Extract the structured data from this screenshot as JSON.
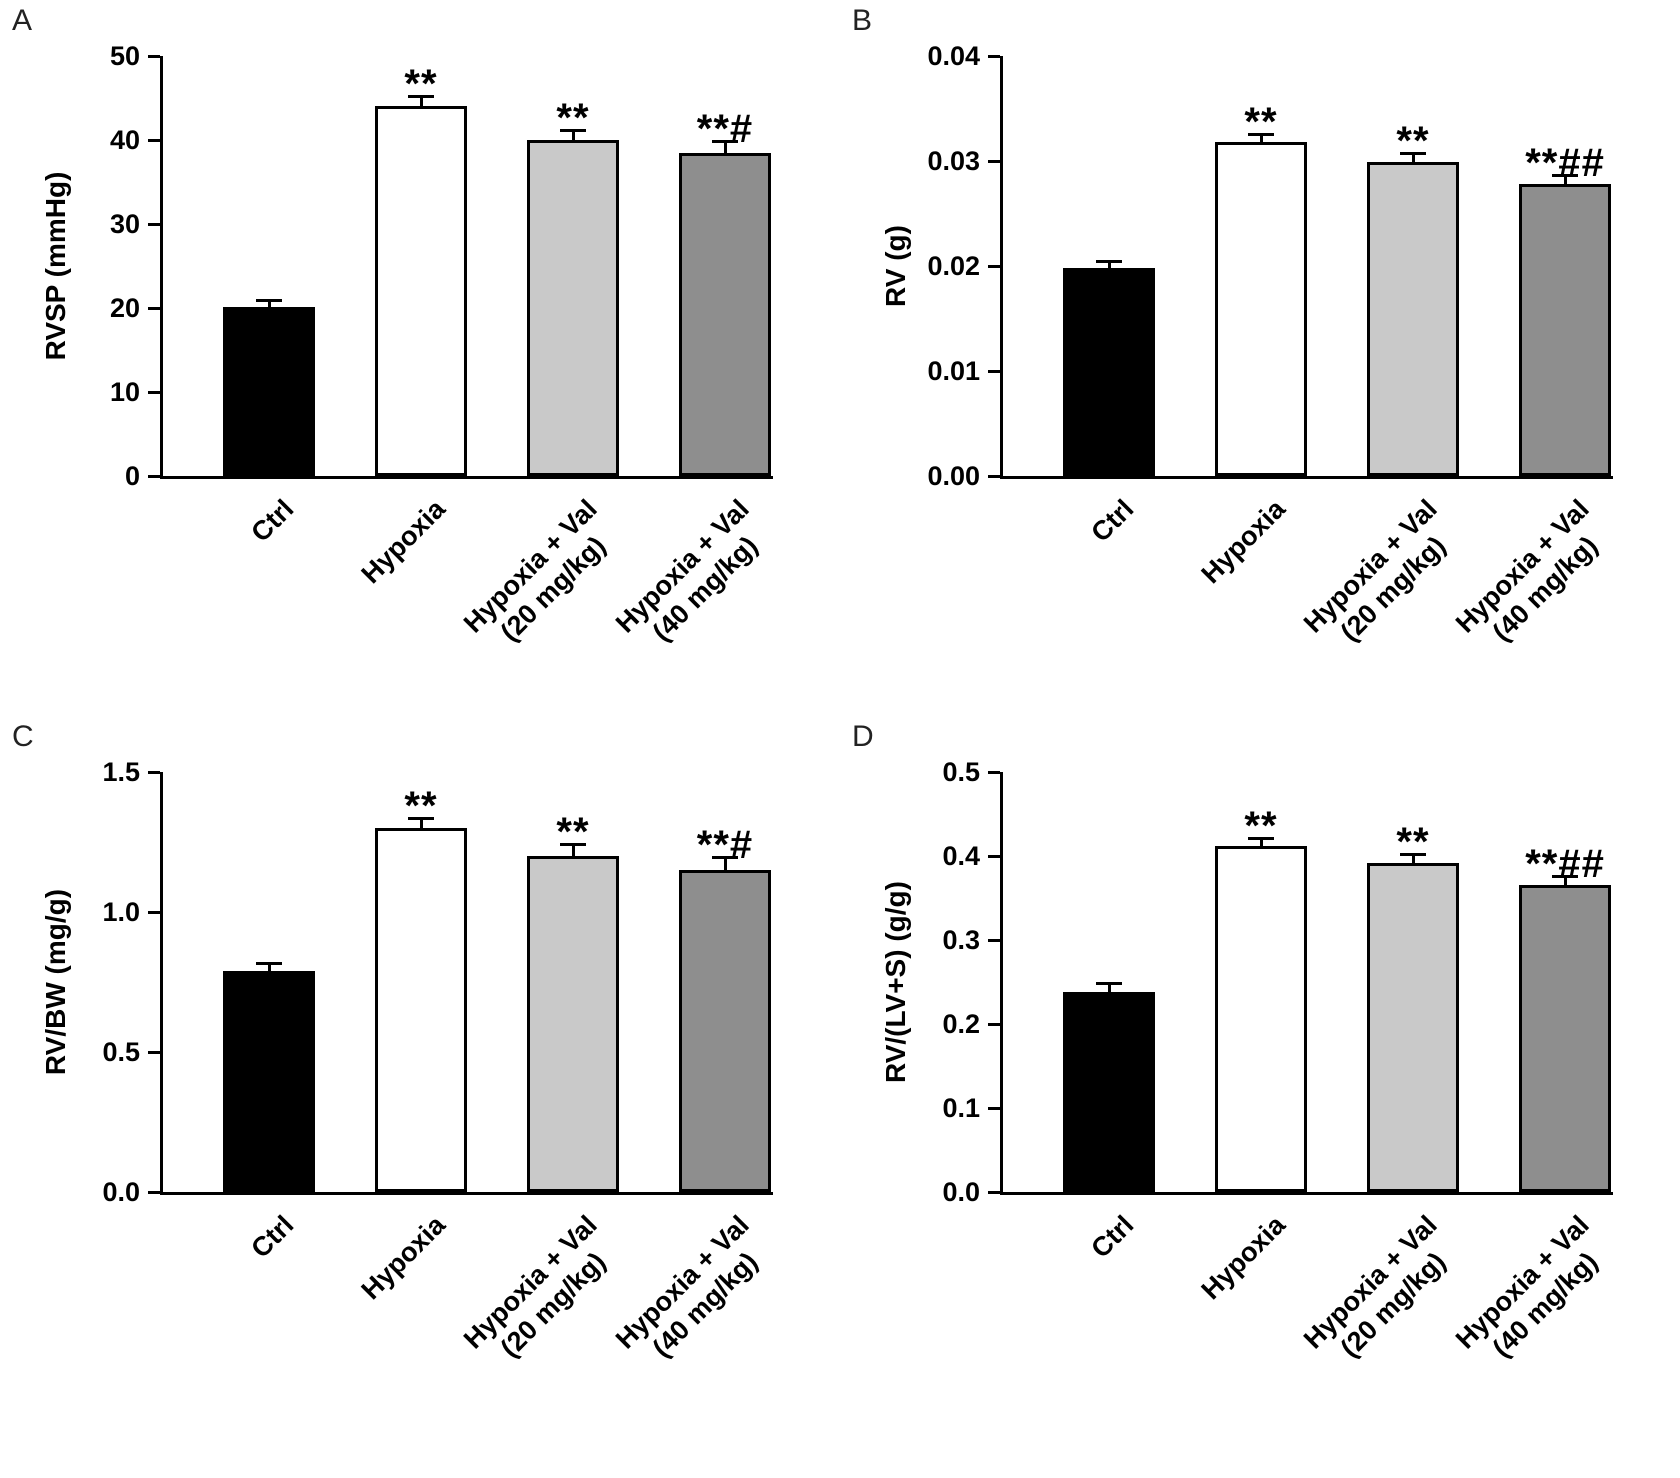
{
  "chart_data": [
    {
      "panel": "A",
      "type": "bar",
      "title": "",
      "xlabel": "",
      "ylabel": "RVSP (mmHg)",
      "ylim": [
        0,
        50
      ],
      "yticks": [
        "0",
        "10",
        "20",
        "30",
        "40",
        "50"
      ],
      "categories": [
        [
          "Ctrl"
        ],
        [
          "Hypoxia"
        ],
        [
          "Hypoxia + Val",
          "(20 mg/kg)"
        ],
        [
          "Hypoxia + Val",
          "(40 mg/kg)"
        ]
      ],
      "values": [
        20.1,
        44.0,
        40.0,
        38.5
      ],
      "errors": [
        0.4,
        1.0,
        1.0,
        1.2
      ],
      "significance": [
        "",
        "**",
        "**",
        "**#"
      ],
      "bar_colors": [
        "#000000",
        "#ffffff",
        "#c9c9c9",
        "#8e8e8e"
      ],
      "grid": false,
      "legend": null
    },
    {
      "panel": "B",
      "type": "bar",
      "title": "",
      "xlabel": "",
      "ylabel": "RV (g)",
      "ylim": [
        0,
        0.04
      ],
      "yticks": [
        "0.00",
        "0.01",
        "0.02",
        "0.03",
        "0.04"
      ],
      "categories": [
        [
          "Ctrl"
        ],
        [
          "Hypoxia"
        ],
        [
          "Hypoxia + Val",
          "(20 mg/kg)"
        ],
        [
          "Hypoxia + Val",
          "(40 mg/kg)"
        ]
      ],
      "values": [
        0.0198,
        0.0318,
        0.0299,
        0.0278
      ],
      "errors": [
        0.0005,
        0.0006,
        0.0007,
        0.0007
      ],
      "significance": [
        "",
        "**",
        "**",
        "**##"
      ],
      "bar_colors": [
        "#000000",
        "#ffffff",
        "#c9c9c9",
        "#8e8e8e"
      ],
      "grid": false,
      "legend": null
    },
    {
      "panel": "C",
      "type": "bar",
      "title": "",
      "xlabel": "",
      "ylabel": "RV/BW (mg/g)",
      "ylim": [
        0,
        1.5
      ],
      "yticks": [
        "0.0",
        "0.5",
        "1.0",
        "1.5"
      ],
      "categories": [
        [
          "Ctrl"
        ],
        [
          "Hypoxia"
        ],
        [
          "Hypoxia + Val",
          "(20 mg/kg)"
        ],
        [
          "Hypoxia + Val",
          "(40 mg/kg)"
        ]
      ],
      "values": [
        0.79,
        1.3,
        1.2,
        1.15
      ],
      "errors": [
        0.02,
        0.03,
        0.035,
        0.04
      ],
      "significance": [
        "",
        "**",
        "**",
        "**#"
      ],
      "bar_colors": [
        "#000000",
        "#ffffff",
        "#c9c9c9",
        "#8e8e8e"
      ],
      "grid": false,
      "legend": null
    },
    {
      "panel": "D",
      "type": "bar",
      "title": "",
      "xlabel": "",
      "ylabel": "RV/(LV+S) (g/g)",
      "ylim": [
        0,
        0.5
      ],
      "yticks": [
        "0.0",
        "0.1",
        "0.2",
        "0.3",
        "0.4",
        "0.5"
      ],
      "categories": [
        [
          "Ctrl"
        ],
        [
          "Hypoxia"
        ],
        [
          "Hypoxia + Val",
          "(20 mg/kg)"
        ],
        [
          "Hypoxia + Val",
          "(40 mg/kg)"
        ]
      ],
      "values": [
        0.238,
        0.412,
        0.392,
        0.365
      ],
      "errors": [
        0.008,
        0.007,
        0.008,
        0.009
      ],
      "significance": [
        "",
        "**",
        "**",
        "**##"
      ],
      "bar_colors": [
        "#000000",
        "#ffffff",
        "#c9c9c9",
        "#8e8e8e"
      ],
      "grid": false,
      "legend": null
    }
  ]
}
